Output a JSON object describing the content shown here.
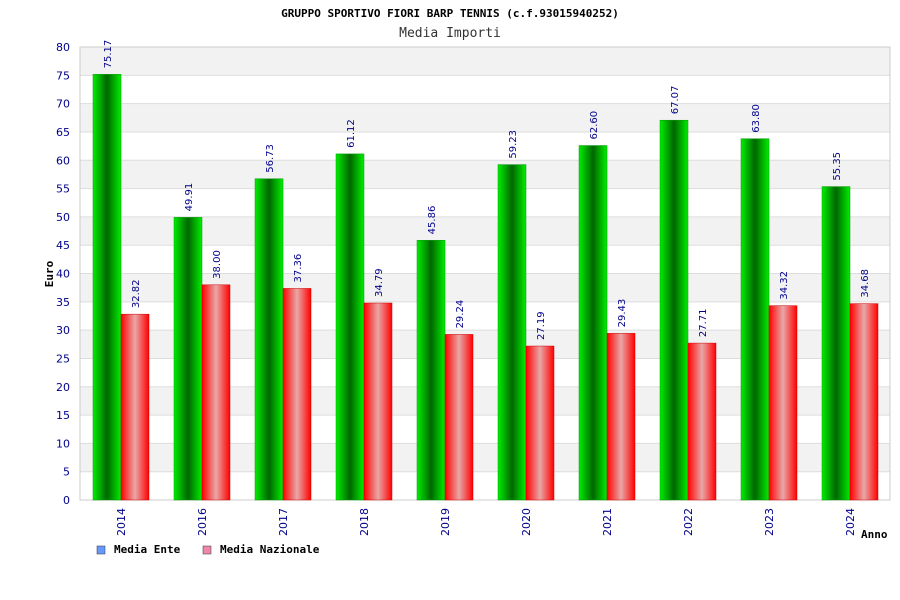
{
  "chart_data": {
    "type": "bar",
    "title": "GRUPPO SPORTIVO FIORI BARP TENNIS (c.f.93015940252)",
    "subtitle": "Media Importi",
    "xlabel": "Anno",
    "ylabel": "Euro",
    "ylim": [
      0,
      80
    ],
    "ytick_step": 5,
    "categories": [
      "2014",
      "2016",
      "2017",
      "2018",
      "2019",
      "2020",
      "2021",
      "2022",
      "2023",
      "2024"
    ],
    "series": [
      {
        "name": "Media Ente",
        "values": [
          75.17,
          49.91,
          56.73,
          61.12,
          45.86,
          59.23,
          62.6,
          67.07,
          63.8,
          55.35
        ],
        "labels": [
          "75.17",
          "49.91",
          "56.73",
          "61.12",
          "45.86",
          "59.23",
          "62.60",
          "67.07",
          "63.80",
          "55.35"
        ],
        "color": "#00cc00",
        "color_dark": "#006600",
        "legend_color": "#6699ff"
      },
      {
        "name": "Media Nazionale",
        "values": [
          32.82,
          38.0,
          37.36,
          34.79,
          29.24,
          27.19,
          29.43,
          27.71,
          34.32,
          34.68
        ],
        "labels": [
          "32.82",
          "38.00",
          "37.36",
          "34.79",
          "29.24",
          "27.19",
          "29.43",
          "27.71",
          "34.32",
          "34.68"
        ],
        "color": "#ff0000",
        "color_dark": "#e0a0a0",
        "legend_color": "#ee88aa"
      }
    ],
    "grid": true,
    "legend_position": "bottom-left"
  }
}
